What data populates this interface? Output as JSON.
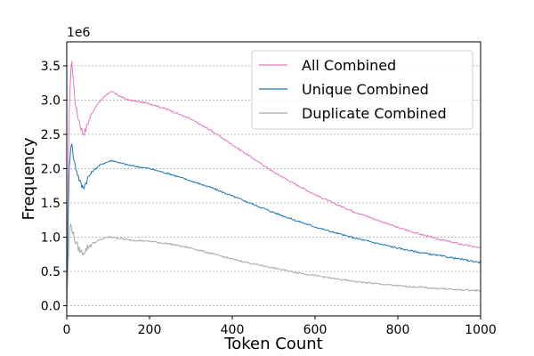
{
  "chart_data": {
    "type": "line",
    "xlabel": "Token Count",
    "ylabel": "Frequency",
    "y_offset_label": "1e6",
    "xlim": [
      0,
      1000
    ],
    "ylim": [
      -0.15,
      3.85
    ],
    "x_ticks": [
      0,
      200,
      400,
      600,
      800,
      1000
    ],
    "x_tick_labels": [
      "0",
      "200",
      "400",
      "600",
      "800",
      "1000"
    ],
    "y_ticks": [
      0.0,
      0.5,
      1.0,
      1.5,
      2.0,
      2.5,
      3.0,
      3.5
    ],
    "y_tick_labels": [
      "0.0",
      "0.5",
      "1.0",
      "1.5",
      "2.0",
      "2.5",
      "3.0",
      "3.5"
    ],
    "grid": "horizontal dashed",
    "legend_placement": "top-right",
    "series": [
      {
        "name": "All Combined",
        "color": "#e377c2",
        "points": [
          [
            0,
            0.0
          ],
          [
            3,
            1.5
          ],
          [
            6,
            2.9
          ],
          [
            9,
            3.3
          ],
          [
            12,
            3.6
          ],
          [
            15,
            3.35
          ],
          [
            20,
            3.0
          ],
          [
            25,
            2.8
          ],
          [
            30,
            2.7
          ],
          [
            35,
            2.58
          ],
          [
            40,
            2.52
          ],
          [
            45,
            2.55
          ],
          [
            50,
            2.65
          ],
          [
            60,
            2.8
          ],
          [
            70,
            2.9
          ],
          [
            80,
            2.98
          ],
          [
            90,
            3.05
          ],
          [
            100,
            3.1
          ],
          [
            110,
            3.12
          ],
          [
            130,
            3.05
          ],
          [
            150,
            3.0
          ],
          [
            200,
            2.95
          ],
          [
            250,
            2.85
          ],
          [
            300,
            2.72
          ],
          [
            350,
            2.55
          ],
          [
            400,
            2.35
          ],
          [
            450,
            2.15
          ],
          [
            500,
            1.95
          ],
          [
            550,
            1.78
          ],
          [
            600,
            1.62
          ],
          [
            650,
            1.48
          ],
          [
            700,
            1.36
          ],
          [
            750,
            1.25
          ],
          [
            800,
            1.14
          ],
          [
            850,
            1.05
          ],
          [
            900,
            0.97
          ],
          [
            950,
            0.9
          ],
          [
            1000,
            0.84
          ]
        ]
      },
      {
        "name": "Unique Combined",
        "color": "#1f77b4",
        "points": [
          [
            0,
            0.0
          ],
          [
            3,
            1.1
          ],
          [
            6,
            2.0
          ],
          [
            9,
            2.3
          ],
          [
            12,
            2.4
          ],
          [
            15,
            2.2
          ],
          [
            20,
            2.05
          ],
          [
            25,
            1.95
          ],
          [
            30,
            1.85
          ],
          [
            35,
            1.75
          ],
          [
            40,
            1.73
          ],
          [
            45,
            1.78
          ],
          [
            50,
            1.85
          ],
          [
            60,
            1.95
          ],
          [
            70,
            2.0
          ],
          [
            80,
            2.05
          ],
          [
            90,
            2.08
          ],
          [
            100,
            2.1
          ],
          [
            110,
            2.12
          ],
          [
            130,
            2.08
          ],
          [
            150,
            2.05
          ],
          [
            200,
            2.0
          ],
          [
            250,
            1.92
          ],
          [
            300,
            1.82
          ],
          [
            350,
            1.72
          ],
          [
            400,
            1.6
          ],
          [
            450,
            1.48
          ],
          [
            500,
            1.36
          ],
          [
            550,
            1.25
          ],
          [
            600,
            1.15
          ],
          [
            650,
            1.06
          ],
          [
            700,
            0.98
          ],
          [
            750,
            0.91
          ],
          [
            800,
            0.84
          ],
          [
            850,
            0.78
          ],
          [
            900,
            0.73
          ],
          [
            950,
            0.68
          ],
          [
            1000,
            0.63
          ]
        ]
      },
      {
        "name": "Duplicate Combined",
        "color": "#a8a8a8",
        "points": [
          [
            0,
            0.0
          ],
          [
            3,
            0.5
          ],
          [
            6,
            1.0
          ],
          [
            9,
            1.2
          ],
          [
            12,
            1.15
          ],
          [
            15,
            1.05
          ],
          [
            20,
            0.95
          ],
          [
            25,
            0.88
          ],
          [
            30,
            0.82
          ],
          [
            35,
            0.78
          ],
          [
            40,
            0.78
          ],
          [
            45,
            0.8
          ],
          [
            50,
            0.85
          ],
          [
            60,
            0.9
          ],
          [
            70,
            0.93
          ],
          [
            80,
            0.96
          ],
          [
            90,
            0.98
          ],
          [
            100,
            1.0
          ],
          [
            110,
            1.0
          ],
          [
            130,
            0.98
          ],
          [
            150,
            0.96
          ],
          [
            200,
            0.94
          ],
          [
            250,
            0.9
          ],
          [
            300,
            0.84
          ],
          [
            350,
            0.76
          ],
          [
            400,
            0.68
          ],
          [
            450,
            0.61
          ],
          [
            500,
            0.55
          ],
          [
            550,
            0.49
          ],
          [
            600,
            0.44
          ],
          [
            650,
            0.39
          ],
          [
            700,
            0.35
          ],
          [
            750,
            0.32
          ],
          [
            800,
            0.29
          ],
          [
            850,
            0.27
          ],
          [
            900,
            0.25
          ],
          [
            950,
            0.23
          ],
          [
            1000,
            0.22
          ]
        ]
      }
    ]
  }
}
